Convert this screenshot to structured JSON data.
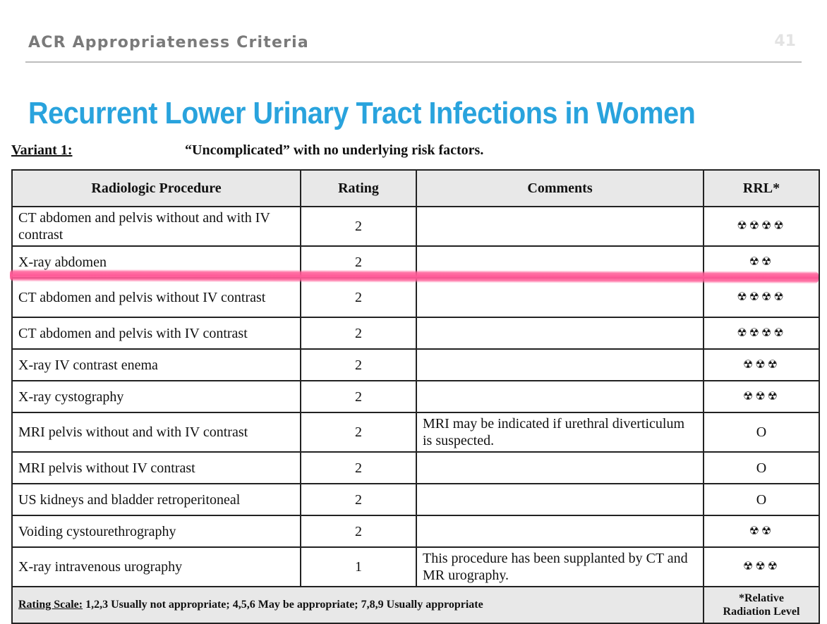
{
  "header": {
    "text": "ACR Appropriateness Criteria",
    "page_number": "41"
  },
  "title": "Recurrent Lower Urinary Tract Infections in Women",
  "variant": {
    "label": "Variant 1:",
    "description": "“Uncomplicated” with no underlying risk factors."
  },
  "table": {
    "columns": [
      "Radiologic Procedure",
      "Rating",
      "Comments",
      "RRL*"
    ],
    "rows": [
      {
        "procedure": "CT abdomen and pelvis without and with IV contrast",
        "rating": "2",
        "comment": "",
        "rrl": "☢☢☢☢"
      },
      {
        "procedure": "X-ray abdomen",
        "rating": "2",
        "comment": "",
        "rrl": "☢☢"
      },
      {
        "procedure": "CT abdomen and pelvis without IV contrast",
        "rating": "2",
        "comment": "",
        "rrl": "☢☢☢☢"
      },
      {
        "procedure": "CT abdomen and pelvis with IV contrast",
        "rating": "2",
        "comment": "",
        "rrl": "☢☢☢☢"
      },
      {
        "procedure": "X-ray IV contrast enema",
        "rating": "2",
        "comment": "",
        "rrl": "☢☢☢"
      },
      {
        "procedure": "X-ray cystography",
        "rating": "2",
        "comment": "",
        "rrl": "☢☢☢"
      },
      {
        "procedure": "MRI pelvis without and with IV contrast",
        "rating": "2",
        "comment": "MRI may be indicated if urethral diverticulum is suspected.",
        "rrl": "O"
      },
      {
        "procedure": "MRI pelvis without IV contrast",
        "rating": "2",
        "comment": "",
        "rrl": "O"
      },
      {
        "procedure": "US kidneys and bladder retroperitoneal",
        "rating": "2",
        "comment": "",
        "rrl": "O"
      },
      {
        "procedure": "Voiding cystourethrography",
        "rating": "2",
        "comment": "",
        "rrl": "☢☢"
      },
      {
        "procedure": "X-ray intravenous urography",
        "rating": "1",
        "comment": "This procedure has been supplanted by CT and MR urography.",
        "rrl": "☢☢☢"
      }
    ],
    "footer": {
      "scale_label": "Rating Scale:",
      "scale_text": " 1,2,3 Usually not appropriate; 4,5,6 May be appropriate; 7,8,9 Usually appropriate",
      "rrl_note_line1": "*Relative",
      "rrl_note_line2": "Radiation Level"
    }
  },
  "colors": {
    "title": "#29a3dd",
    "header_text": "#7a7a7a",
    "redaction": "#ff5a98",
    "table_header_bg": "#e8e8e8"
  }
}
